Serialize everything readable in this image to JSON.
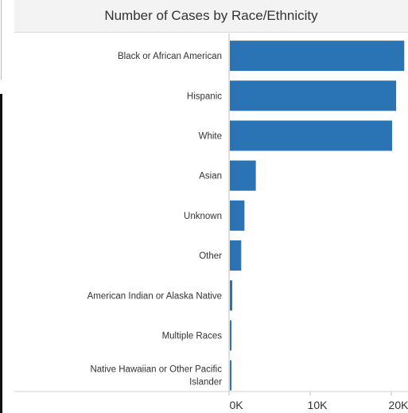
{
  "chart_data": {
    "type": "bar",
    "orientation": "horizontal",
    "title": "Number of Cases by Race/Ethnicity",
    "xlabel": "",
    "ylabel": "",
    "categories": [
      "Black or African American",
      "Hispanic",
      "White",
      "Asian",
      "Unknown",
      "Other",
      "American Indian or Alaska Native",
      "Multiple Races",
      "Native Hawaiian or Other Pacific Islander"
    ],
    "values": [
      21500,
      20500,
      20000,
      3200,
      1800,
      1400,
      300,
      150,
      100
    ],
    "xlim": [
      0,
      22000
    ],
    "ticks": [
      0,
      10000,
      20000
    ],
    "tick_labels": [
      "0K",
      "10K",
      "20K"
    ],
    "bar_color": "#2a74b5",
    "grid": false
  }
}
